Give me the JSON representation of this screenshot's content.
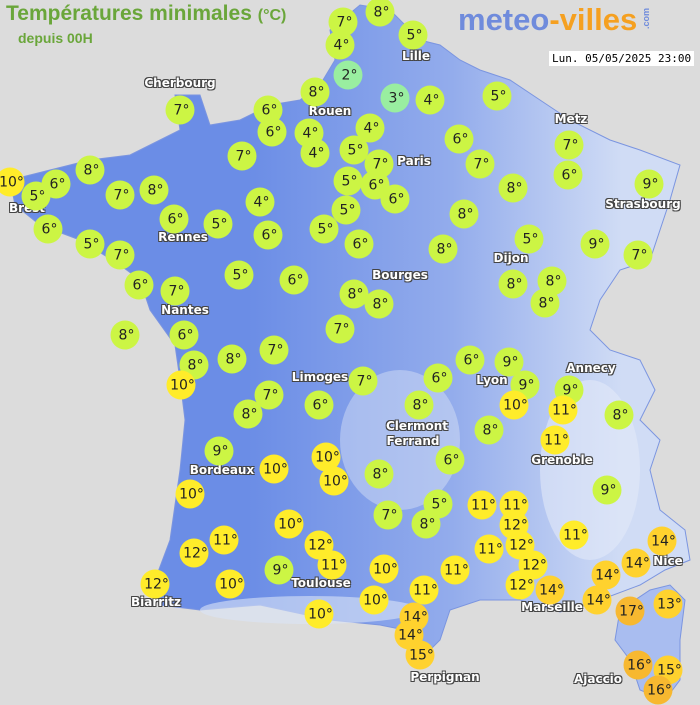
{
  "header": {
    "title": "Températures minimales",
    "title_unit": "(°C)",
    "subtitle": "depuis 00H",
    "logo": {
      "part1": "meteo",
      "part2": "-villes",
      "suffix": ".com"
    },
    "datetime": "Lun. 05/05/2025 23:00"
  },
  "colors": {
    "sea": "#dcdcdc",
    "land_west": "#6b8de6",
    "land_east": "#c2d0f2",
    "temp_2_3": "#99eea0",
    "temp_4_9": "#ccf544",
    "temp_10_12": "#ffec2a",
    "temp_13_15": "#ffd22e",
    "temp_16_17": "#f7b830",
    "title": "#6aa63a"
  },
  "cities": [
    "Lille",
    "Cherbourg",
    "Rouen",
    "Metz",
    "Paris",
    "Brest",
    "Strasbourg",
    "Rennes",
    "Dijon",
    "Bourges",
    "Nantes",
    "Annecy",
    "Limoges",
    "Lyon",
    "Clermont",
    "Ferrand",
    "Grenoble",
    "Bordeaux",
    "Nice",
    "Toulouse",
    "Biarritz",
    "Marseille",
    "Perpignan",
    "Ajaccio"
  ],
  "temperatures_unit": "°",
  "temperatures": [
    8,
    7,
    5,
    4,
    2,
    8,
    3,
    4,
    5,
    7,
    6,
    6,
    4,
    4,
    6,
    7,
    7,
    4,
    5,
    7,
    7,
    6,
    8,
    10,
    5,
    6,
    7,
    8,
    5,
    6,
    6,
    8,
    9,
    4,
    5,
    8,
    6,
    5,
    6,
    5,
    6,
    5,
    6,
    8,
    5,
    9,
    7,
    7,
    5,
    6,
    6,
    7,
    8,
    8,
    8,
    8,
    8,
    8,
    6,
    7,
    7,
    8,
    8,
    10,
    6,
    9,
    7,
    6,
    9,
    9,
    10,
    11,
    8,
    7,
    8,
    6,
    8,
    8,
    11,
    9,
    10,
    10,
    10,
    8,
    6,
    9,
    10,
    5,
    11,
    11,
    7,
    8,
    12,
    11,
    10,
    11,
    12,
    12,
    11,
    14,
    14,
    12,
    12,
    12,
    14,
    9,
    11,
    10,
    11,
    14,
    12,
    10,
    11,
    14,
    17,
    13,
    10,
    14,
    10,
    14,
    15,
    16,
    15,
    16
  ]
}
